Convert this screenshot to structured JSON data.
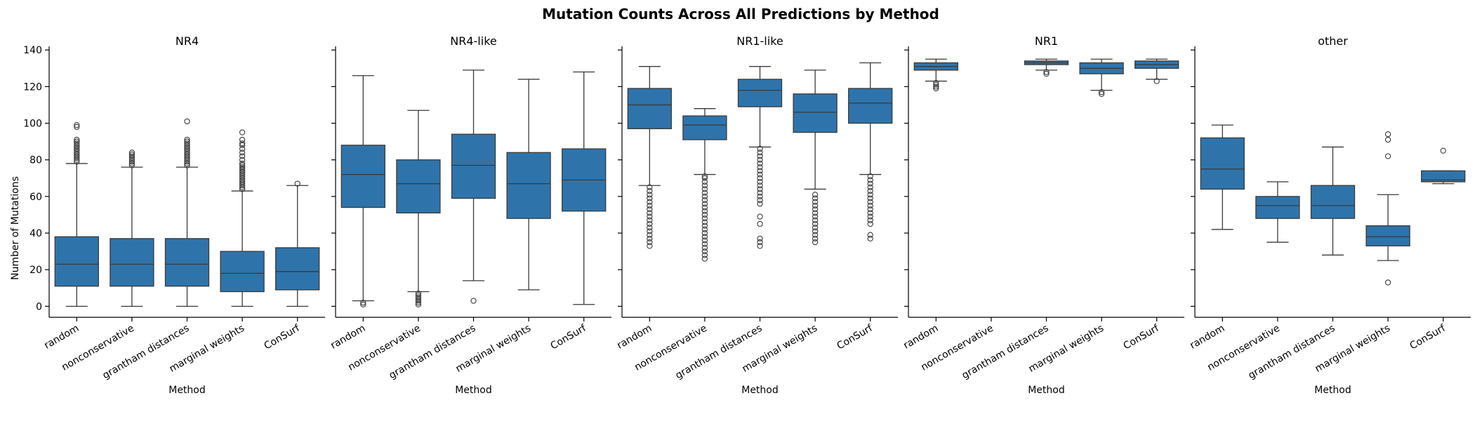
{
  "chart_data": {
    "type": "box",
    "title": "Mutation Counts Across All Predictions by Method",
    "ylabel": "Number of Mutations",
    "xlabel": "Method",
    "ylim": [
      -6,
      142
    ],
    "yticks": [
      0,
      20,
      40,
      60,
      80,
      100,
      120,
      140
    ],
    "categories": [
      "random",
      "nonconservative",
      "grantham distances",
      "marginal weights",
      "ConSurf"
    ],
    "box_color": "#2e74ab",
    "line_color": "#3a3a3a",
    "panels": [
      {
        "title": "NR4",
        "boxes": [
          {
            "min": 0,
            "q1": 11,
            "median": 23,
            "q3": 38,
            "max": 78,
            "outliers": [
              79,
              80,
              81,
              82,
              83,
              84,
              85,
              86,
              87,
              88,
              89,
              90,
              91,
              98,
              99
            ]
          },
          {
            "min": 0,
            "q1": 11,
            "median": 23,
            "q3": 37,
            "max": 76,
            "outliers": [
              77,
              78,
              79,
              80,
              81,
              82,
              83,
              84
            ]
          },
          {
            "min": 0,
            "q1": 11,
            "median": 23,
            "q3": 37,
            "max": 76,
            "outliers": [
              77,
              78,
              79,
              80,
              81,
              82,
              83,
              84,
              85,
              86,
              87,
              88,
              89,
              90,
              91,
              101
            ]
          },
          {
            "min": 0,
            "q1": 8,
            "median": 18,
            "q3": 30,
            "max": 63,
            "outliers": [
              64,
              65,
              66,
              67,
              68,
              69,
              70,
              71,
              72,
              73,
              74,
              75,
              76,
              77,
              78,
              80,
              82,
              84,
              86,
              88,
              89,
              91,
              95
            ]
          },
          {
            "min": 0,
            "q1": 9,
            "median": 19,
            "q3": 32,
            "max": 66,
            "outliers": [
              67
            ]
          }
        ]
      },
      {
        "title": "NR4-like",
        "boxes": [
          {
            "min": 3,
            "q1": 54,
            "median": 72,
            "q3": 88,
            "max": 126,
            "outliers": [
              1,
              2
            ]
          },
          {
            "min": 8,
            "q1": 51,
            "median": 67,
            "q3": 80,
            "max": 107,
            "outliers": [
              1,
              2,
              3,
              4,
              5,
              6,
              7
            ]
          },
          {
            "min": 14,
            "q1": 59,
            "median": 77,
            "q3": 94,
            "max": 129,
            "outliers": [
              3
            ]
          },
          {
            "min": 9,
            "q1": 48,
            "median": 67,
            "q3": 84,
            "max": 124,
            "outliers": []
          },
          {
            "min": 1,
            "q1": 52,
            "median": 69,
            "q3": 86,
            "max": 128,
            "outliers": []
          }
        ]
      },
      {
        "title": "NR1-like",
        "boxes": [
          {
            "min": 66,
            "q1": 97,
            "median": 110,
            "q3": 119,
            "max": 131,
            "outliers": [
              33,
              35,
              37,
              39,
              41,
              43,
              45,
              47,
              49,
              51,
              53,
              55,
              57,
              59,
              61,
              63,
              65
            ]
          },
          {
            "min": 72,
            "q1": 91,
            "median": 99,
            "q3": 104,
            "max": 108,
            "outliers": [
              26,
              28,
              30,
              32,
              34,
              36,
              38,
              40,
              42,
              44,
              46,
              48,
              50,
              52,
              54,
              56,
              58,
              60,
              62,
              64,
              66,
              68,
              70,
              71
            ]
          },
          {
            "min": 87,
            "q1": 109,
            "median": 118,
            "q3": 124,
            "max": 131,
            "outliers": [
              33,
              35,
              37,
              45,
              49,
              56,
              58,
              60,
              62,
              64,
              66,
              68,
              70,
              72,
              74,
              76,
              78,
              80,
              82,
              84,
              86
            ]
          },
          {
            "min": 64,
            "q1": 95,
            "median": 106,
            "q3": 116,
            "max": 129,
            "outliers": [
              35,
              37,
              39,
              41,
              43,
              45,
              47,
              49,
              51,
              53,
              55,
              57,
              59,
              61
            ]
          },
          {
            "min": 72,
            "q1": 100,
            "median": 111,
            "q3": 119,
            "max": 133,
            "outliers": [
              37,
              39,
              45,
              47,
              49,
              51,
              53,
              55,
              57,
              59,
              61,
              63,
              65,
              67,
              69,
              71
            ]
          }
        ]
      },
      {
        "title": "NR1",
        "boxes": [
          {
            "min": 123,
            "q1": 129,
            "median": 131,
            "q3": 133,
            "max": 135,
            "outliers": [
              119,
              120,
              121,
              122
            ]
          },
          null,
          {
            "min": 129,
            "q1": 132,
            "median": 133,
            "q3": 134,
            "max": 135,
            "outliers": [
              127,
              128
            ]
          },
          {
            "min": 118,
            "q1": 127,
            "median": 130,
            "q3": 133,
            "max": 135,
            "outliers": [
              116,
              117
            ]
          },
          {
            "min": 124,
            "q1": 130,
            "median": 132,
            "q3": 134,
            "max": 135,
            "outliers": [
              123
            ]
          }
        ]
      },
      {
        "title": "other",
        "boxes": [
          {
            "min": 42,
            "q1": 64,
            "median": 75,
            "q3": 92,
            "max": 99,
            "outliers": []
          },
          {
            "min": 35,
            "q1": 48,
            "median": 55,
            "q3": 60,
            "max": 68,
            "outliers": []
          },
          {
            "min": 28,
            "q1": 48,
            "median": 55,
            "q3": 66,
            "max": 87,
            "outliers": []
          },
          {
            "min": 25,
            "q1": 33,
            "median": 38,
            "q3": 44,
            "max": 61,
            "outliers": [
              13,
              82,
              91,
              94
            ]
          },
          {
            "min": 67,
            "q1": 68,
            "median": 69,
            "q3": 74,
            "max": 74,
            "outliers": [
              85
            ]
          }
        ]
      }
    ]
  }
}
